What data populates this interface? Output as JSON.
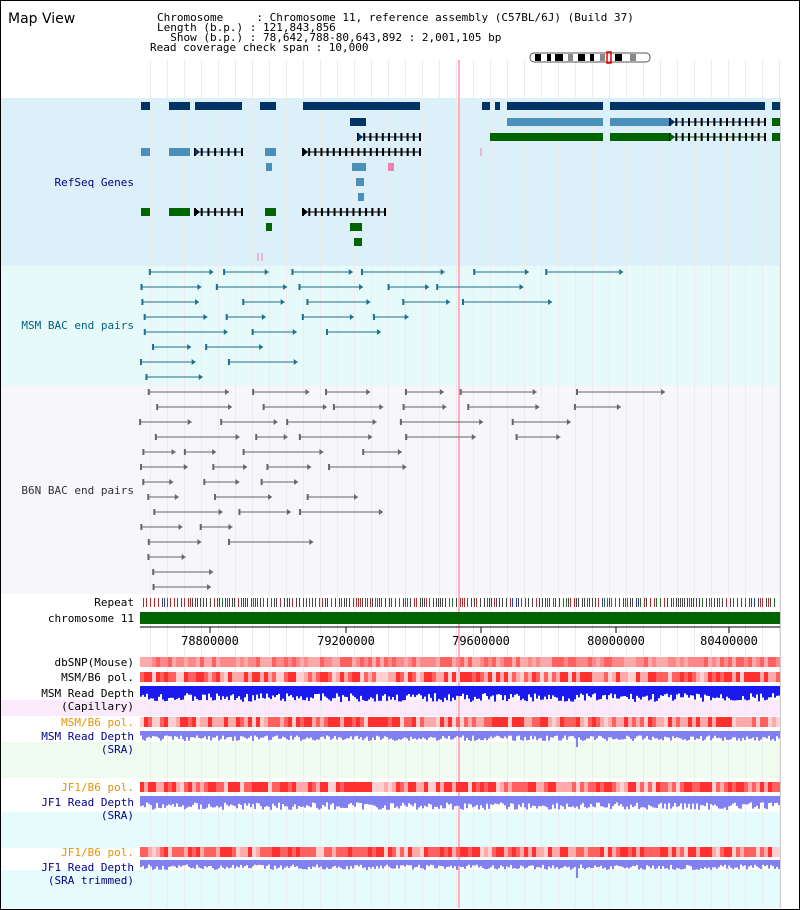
{
  "title": "Map View",
  "header": {
    "lines": [
      "Chromosome     : Chromosome 11, reference assembly (C57BL/6J) (Build 37)",
      "Length (b.p.) : 121,843,856",
      "  Show (b.p.) : 78,642,788-80,643,892 : 2,001,105 bp",
      "Read coverage check span : 10,000"
    ]
  },
  "tracks": {
    "refseq": "RefSeq Genes",
    "msm_bac": "MSM BAC end pairs",
    "b6n_bac": "B6N BAC end pairs",
    "repeat": "Repeat",
    "chromosome": "chromosome 11",
    "dbsnp": "dbSNP(Mouse)",
    "msm_b6_pol_1": "MSM/B6 pol.",
    "msm_read_depth_cap_1": "MSM Read Depth",
    "msm_read_depth_cap_2": "(Capillary)",
    "msm_b6_pol_2": "MSM/B6 pol.",
    "msm_read_depth_sra_1": "MSM Read Depth",
    "msm_read_depth_sra_2": "(SRA)",
    "jf1_b6_pol_1": "JF1/B6 pol.",
    "jf1_read_depth_sra_1": "JF1 Read Depth",
    "jf1_read_depth_sra_2": "(SRA)",
    "jf1_b6_pol_2": "JF1/B6 pol.",
    "jf1_read_depth_trim_1": "JF1 Read Depth",
    "jf1_read_depth_trim_2": "(SRA trimmed)"
  },
  "axis": {
    "ticks": [
      "78800000",
      "79200000",
      "79600000",
      "80000000",
      "80400000"
    ]
  },
  "colors": {
    "title": "#000000",
    "label_blue": "#00008b",
    "label_orange": "#e69500",
    "label_teal": "#006080",
    "refseq_bg": "#dcf0fa",
    "msm_bg": "#e6fafa",
    "b6n_bg": "#f5f5fa",
    "gene_dark": "#003366",
    "gene_mid": "#4a90b8",
    "gene_green": "#006400",
    "chromosome": "#006400",
    "depth_blue": "#1a1aee",
    "depth_light": "#8080f0"
  }
}
